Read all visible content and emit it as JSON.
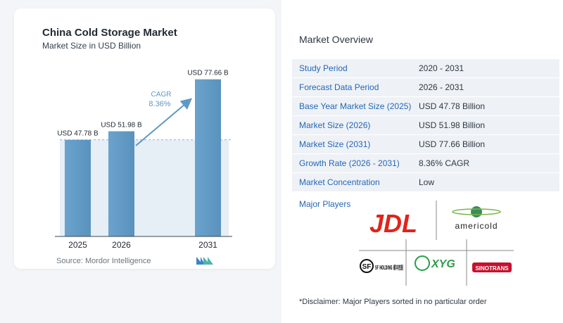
{
  "chart": {
    "title": "China Cold Storage Market",
    "subtitle": "Market Size in USD Billion",
    "source": "Source:  Mordor Intelligence",
    "cagr_label": "CAGR",
    "cagr_value": "8.36%"
  },
  "chart_data": {
    "type": "bar",
    "categories": [
      "2025",
      "2026",
      "2031"
    ],
    "values": [
      47.78,
      51.98,
      77.66
    ],
    "data_labels": [
      "USD 47.78 B",
      "USD 51.98 B",
      "USD 77.66 B"
    ],
    "title": "China Cold Storage Market",
    "subtitle": "Market Size in USD Billion",
    "xlabel": "",
    "ylabel": "",
    "ylim": [
      0,
      80
    ],
    "grid": false,
    "bar_color": "#5e98c4",
    "annotation": "CAGR 8.36%"
  },
  "overview": {
    "title": "Market Overview",
    "rows": [
      {
        "label": "Study Period",
        "value": "2020 - 2031"
      },
      {
        "label": "Forecast Data Period",
        "value": "2026 - 2031"
      },
      {
        "label": "Base Year Market Size (2025)",
        "value": "USD 47.78 Billion"
      },
      {
        "label": "Market Size (2026)",
        "value": "USD 51.98 Billion"
      },
      {
        "label": "Market Size (2031)",
        "value": "USD 77.66 Billion"
      },
      {
        "label": "Growth Rate (2026 - 2031)",
        "value": "8.36% CAGR"
      },
      {
        "label": "Market Concentration",
        "value": "Low"
      }
    ],
    "players_title": "Major Players",
    "players": [
      "JDL",
      "americold",
      "SF HOLDING 顺丰控股",
      "XYG",
      "SINOTRANS"
    ],
    "disclaimer": "*Disclaimer: Major Players sorted in no particular order"
  },
  "colors": {
    "accent": "#2566b8",
    "bar": "#5e98c4",
    "row_alt": "#eef2f6"
  }
}
